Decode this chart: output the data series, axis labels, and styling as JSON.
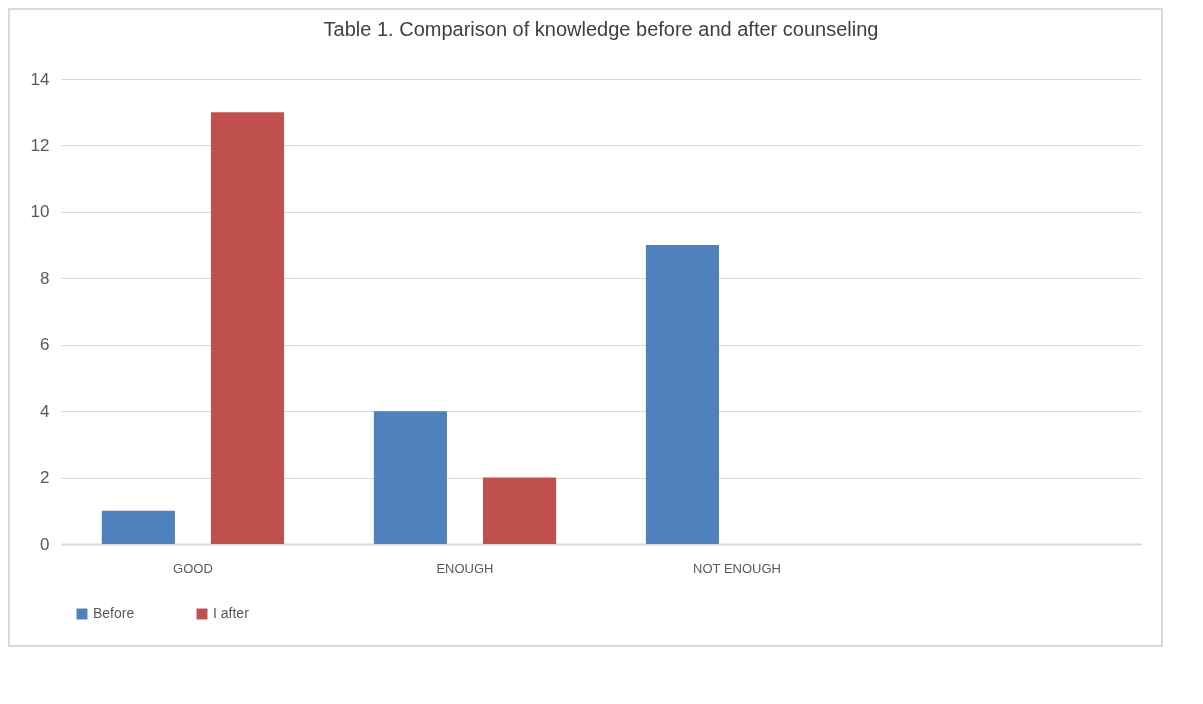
{
  "chart_data": {
    "type": "bar",
    "title": "Table 1. Comparison of knowledge before and after counseling",
    "categories": [
      "GOOD",
      "ENOUGH",
      "NOT ENOUGH",
      null
    ],
    "series": [
      {
        "name": "Before",
        "color": "#4f81bd",
        "values": [
          1,
          4,
          9,
          null
        ]
      },
      {
        "name": "I after",
        "color": "#c0504d",
        "values": [
          13,
          2,
          0,
          null
        ]
      }
    ],
    "ylim": [
      0,
      14
    ],
    "yticks": [
      0,
      2,
      4,
      6,
      8,
      10,
      12,
      14
    ],
    "grid": "y",
    "legend": "bottom"
  }
}
